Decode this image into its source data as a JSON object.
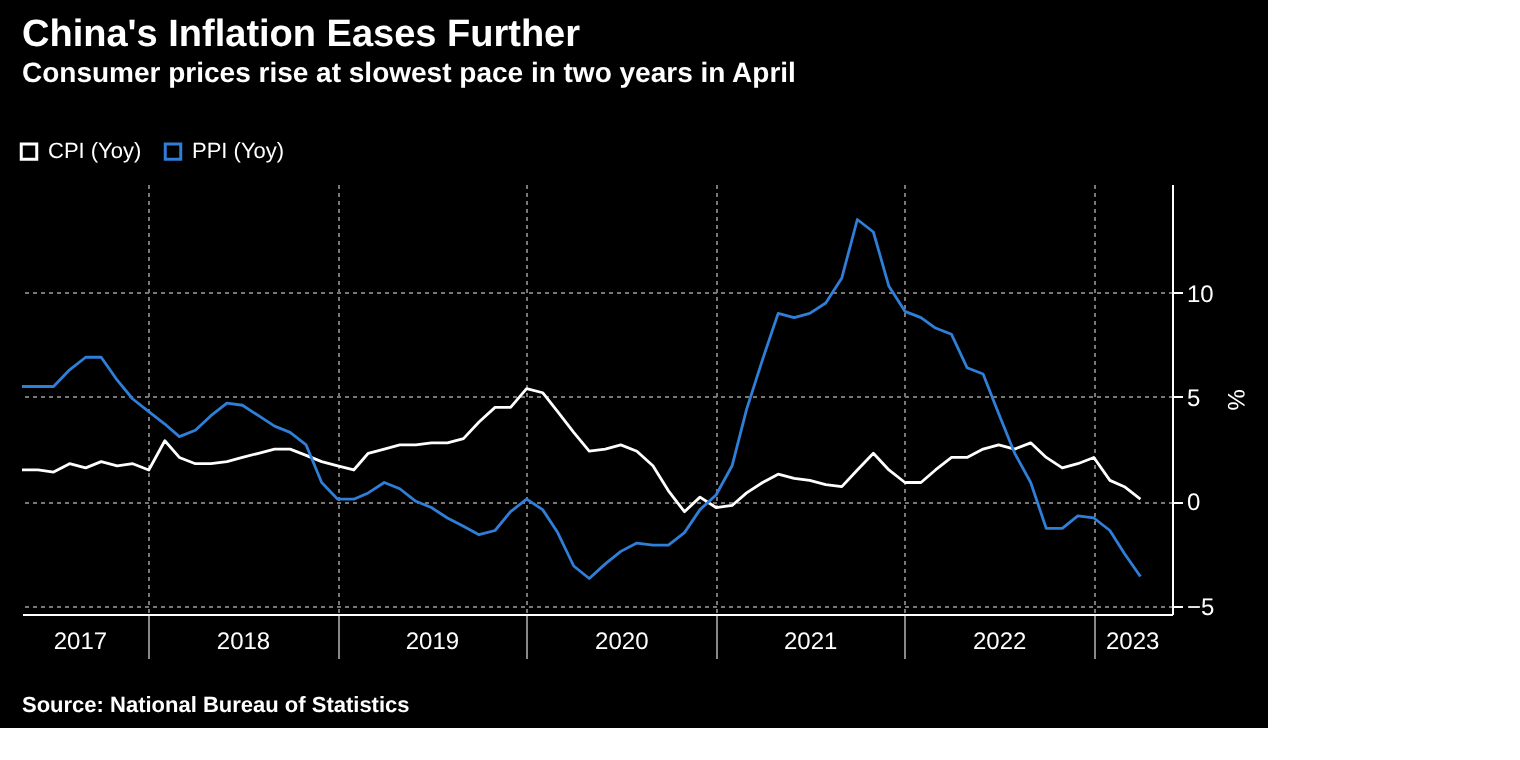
{
  "chart_data": {
    "type": "line",
    "title": "China's Inflation Eases Further",
    "subtitle": "Consumer prices rise at slowest pace in two years in April",
    "ylabel": "%",
    "annotations": [
      "Source: National Bureau of Statistics"
    ],
    "x": [
      "2017-05",
      "2017-06",
      "2017-07",
      "2017-08",
      "2017-09",
      "2017-10",
      "2017-11",
      "2017-12",
      "2018-01",
      "2018-02",
      "2018-03",
      "2018-04",
      "2018-05",
      "2018-06",
      "2018-07",
      "2018-08",
      "2018-09",
      "2018-10",
      "2018-11",
      "2018-12",
      "2019-01",
      "2019-02",
      "2019-03",
      "2019-04",
      "2019-05",
      "2019-06",
      "2019-07",
      "2019-08",
      "2019-09",
      "2019-10",
      "2019-11",
      "2019-12",
      "2020-01",
      "2020-02",
      "2020-03",
      "2020-04",
      "2020-05",
      "2020-06",
      "2020-07",
      "2020-08",
      "2020-09",
      "2020-10",
      "2020-11",
      "2020-12",
      "2021-01",
      "2021-02",
      "2021-03",
      "2021-04",
      "2021-05",
      "2021-06",
      "2021-07",
      "2021-08",
      "2021-09",
      "2021-10",
      "2021-11",
      "2021-12",
      "2022-01",
      "2022-02",
      "2022-03",
      "2022-04",
      "2022-05",
      "2022-06",
      "2022-07",
      "2022-08",
      "2022-09",
      "2022-10",
      "2022-11",
      "2022-12",
      "2023-01",
      "2023-02",
      "2023-03",
      "2023-04"
    ],
    "series": [
      {
        "name": "CPI (Yoy)",
        "color": "#ffffff",
        "values": [
          1.5,
          1.5,
          1.4,
          1.8,
          1.6,
          1.9,
          1.7,
          1.8,
          1.5,
          2.9,
          2.1,
          1.8,
          1.8,
          1.9,
          2.1,
          2.3,
          2.5,
          2.5,
          2.2,
          1.9,
          1.7,
          1.5,
          2.3,
          2.5,
          2.7,
          2.7,
          2.8,
          2.8,
          3.0,
          3.8,
          4.5,
          4.5,
          5.4,
          5.2,
          4.3,
          3.3,
          2.4,
          2.5,
          2.7,
          2.4,
          1.7,
          0.5,
          -0.5,
          0.2,
          -0.3,
          -0.2,
          0.4,
          0.9,
          1.3,
          1.1,
          1.0,
          0.8,
          0.7,
          1.5,
          2.3,
          1.5,
          0.9,
          0.9,
          1.5,
          2.1,
          2.1,
          2.5,
          2.7,
          2.5,
          2.8,
          2.1,
          1.6,
          1.8,
          2.1,
          1.0,
          0.7,
          0.1
        ]
      },
      {
        "name": "PPI (Yoy)",
        "color": "#2f7ed8",
        "values": [
          5.5,
          5.5,
          5.5,
          6.3,
          6.9,
          6.9,
          5.8,
          4.9,
          4.3,
          3.7,
          3.1,
          3.4,
          4.1,
          4.7,
          4.6,
          4.1,
          3.6,
          3.3,
          2.7,
          0.9,
          0.1,
          0.1,
          0.4,
          0.9,
          0.6,
          0.0,
          -0.3,
          -0.8,
          -1.2,
          -1.6,
          -1.4,
          -0.5,
          0.1,
          -0.4,
          -1.5,
          -3.1,
          -3.7,
          -3.0,
          -2.4,
          -2.0,
          -2.1,
          -2.1,
          -1.5,
          -0.4,
          0.3,
          1.7,
          4.4,
          6.8,
          9.0,
          8.8,
          9.0,
          9.5,
          10.7,
          13.5,
          12.9,
          10.3,
          9.1,
          8.8,
          8.3,
          8.0,
          6.4,
          6.1,
          4.2,
          2.3,
          0.9,
          -1.3,
          -1.3,
          -0.7,
          -0.8,
          -1.4,
          -2.5,
          -3.6
        ]
      }
    ],
    "xlim": [
      "2017-05-01",
      "2023-06-01"
    ],
    "xticks": [
      {
        "value": "2018-01-01",
        "label": null
      },
      {
        "value": "2019-01-01",
        "label": null
      },
      {
        "value": "2020-01-01",
        "label": null
      },
      {
        "value": "2021-01-01",
        "label": null
      },
      {
        "value": "2022-01-01",
        "label": null
      },
      {
        "value": "2023-01-01",
        "label": null
      },
      {
        "value": "2017-08-20",
        "label": "2017"
      },
      {
        "value": "2018-07-01",
        "label": "2018"
      },
      {
        "value": "2019-07-01",
        "label": "2019"
      },
      {
        "value": "2020-07-01",
        "label": "2020"
      },
      {
        "value": "2021-07-01",
        "label": "2021"
      },
      {
        "value": "2022-07-01",
        "label": "2022"
      },
      {
        "value": "2023-03-15",
        "label": "2023"
      }
    ],
    "ylim": [
      -5.4,
      15.2
    ],
    "yticks": [
      -5,
      0,
      5,
      10
    ],
    "grid": true,
    "legend": "top left",
    "marker": "none",
    "line_style": "solid"
  }
}
